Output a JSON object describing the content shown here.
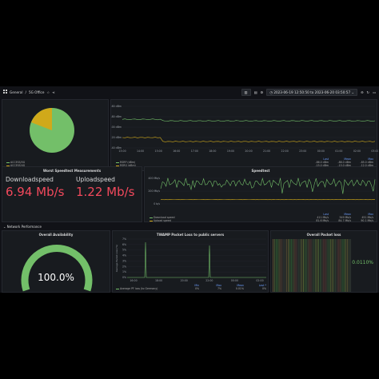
{
  "header": {
    "breadcrumb_root": "General",
    "breadcrumb_sep": "/",
    "title": "5G Office",
    "time_range": "2023-06-19 12:50:50 to 2023-06-20 03:50:57",
    "icons": [
      "dashboard-icon",
      "star-icon",
      "share-icon",
      "add-panel-icon",
      "save-icon",
      "settings-icon",
      "clock-icon",
      "zoom-out-icon",
      "refresh-icon",
      "tv-icon"
    ]
  },
  "row_network": {
    "label": "Network Performance"
  },
  "panels": {
    "pie": {
      "legend": [
        "ACCESS/5G",
        "ACCESS/4G"
      ],
      "colors": [
        "#73bf69",
        "#d0a91a"
      ]
    },
    "signal": {
      "y_ticks": [
        "-60 dBm",
        "-80 dBm",
        "-100 dBm",
        "-120 dBm",
        "-140 dBm"
      ],
      "x_ticks": [
        "13:00",
        "14:00",
        "15:00",
        "16:00",
        "17:00",
        "18:00",
        "19:00",
        "20:00",
        "21:00",
        "22:00",
        "23:00",
        "00:00",
        "01:00",
        "02:00",
        "03:00"
      ],
      "legend_header": [
        "Last",
        "Mean",
        "Max"
      ],
      "series": [
        {
          "name": "RSRP (dBm)",
          "color": "#73bf69",
          "last": "-86.0 dBm",
          "mean": "-86.0 dBm",
          "max": "-85.0 dBm"
        },
        {
          "name": "RSRQ (dBm)",
          "color": "#d0a91a",
          "last": "-15.0 dBm",
          "mean": "-15.0 dBm",
          "max": "-12.0 dBm"
        }
      ]
    },
    "worst": {
      "title": "Worst Speedtest Measurements",
      "download_label": "Downloadspeed",
      "download_value": "6.94 Mb/s",
      "upload_label": "Uploadspeed",
      "upload_value": "1.22 Mb/s"
    },
    "speedtest": {
      "title": "Speedtest",
      "y_ticks": [
        "400 Mb/s",
        "200 Mb/s",
        "0 b/s"
      ],
      "legend_header": [
        "Last",
        "Mean",
        "Max"
      ],
      "series": [
        {
          "name": "Download speed",
          "color": "#73bf69",
          "last": "411 Mb/s",
          "mean": "349 Mb/s",
          "max": "451 Mb/s"
        },
        {
          "name": "Upload speed",
          "color": "#d0a91a",
          "last": "81.6 Mb/s",
          "mean": "84.7 Mb/s",
          "max": "90.1 Mb/s"
        }
      ]
    },
    "availability": {
      "title": "Overall Availability",
      "value": "100.0%",
      "fraction": 1.0
    },
    "twamp": {
      "title": "TWAMP Packet Loss to public servers",
      "y_label": "Average Packet Loss (%)",
      "y_ticks": [
        "7%",
        "6%",
        "5%",
        "4%",
        "3%",
        "2%",
        "1%",
        "0%"
      ],
      "x_ticks": [
        "16:00",
        "18:00",
        "20:00",
        "22:00",
        "00:00",
        "02:00"
      ],
      "legend_header": [
        "Min",
        "Max",
        "Mean",
        "Last *"
      ],
      "series": [
        {
          "name": "Average PF loss (to Germany)",
          "color": "#73bf69",
          "min": "0%",
          "max": "7%",
          "mean": "0.01%",
          "last": "0%"
        }
      ]
    },
    "packetloss": {
      "title": "Overall Packet loss",
      "value": "0.0110%"
    }
  }
}
